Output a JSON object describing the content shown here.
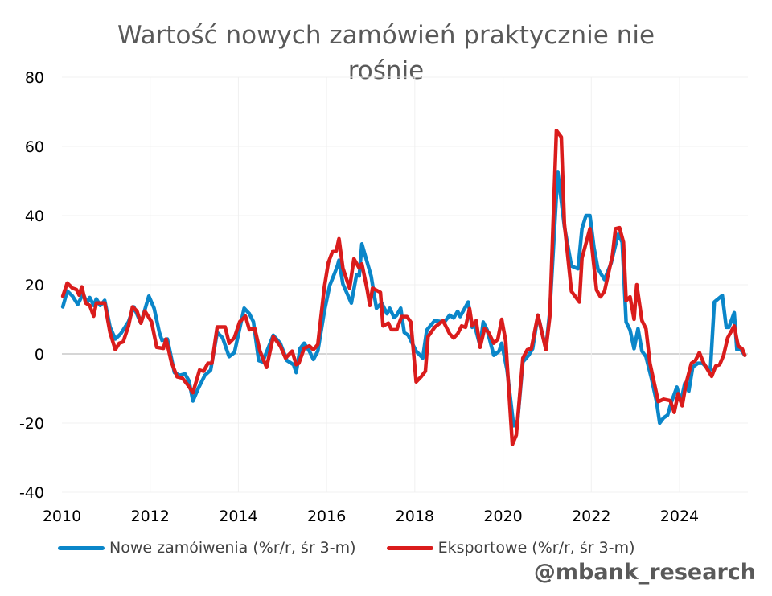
{
  "chart_data": {
    "type": "line",
    "title": "Wartość nowych zamówień praktycznie nie rośnie",
    "xlabel": "",
    "ylabel": "",
    "xlim": [
      2010,
      2025.55
    ],
    "ylim": [
      -40,
      80
    ],
    "x_ticks": [
      "2010",
      "2012",
      "2014",
      "2016",
      "2018",
      "2020",
      "2022",
      "2024"
    ],
    "y_ticks": [
      "80",
      "60",
      "40",
      "20",
      "0",
      "-20",
      "-40"
    ],
    "grid": true,
    "legend_position": "bottom",
    "series": [
      {
        "name": "Nowe zamóiwenia (%r/r, śr 3-m)",
        "color": "#0A86C9",
        "points": [
          [
            2010.02,
            13.6
          ],
          [
            2010.12,
            18.2
          ],
          [
            2010.24,
            16.7
          ],
          [
            2010.36,
            14.3
          ],
          [
            2010.48,
            17.4
          ],
          [
            2010.57,
            14.7
          ],
          [
            2010.63,
            16.3
          ],
          [
            2010.72,
            14
          ],
          [
            2010.78,
            15.9
          ],
          [
            2010.87,
            14
          ],
          [
            2010.97,
            15.5
          ],
          [
            2011.09,
            7.8
          ],
          [
            2011.21,
            4.3
          ],
          [
            2011.33,
            5.8
          ],
          [
            2011.51,
            9.3
          ],
          [
            2011.63,
            13.6
          ],
          [
            2011.79,
            8.9
          ],
          [
            2011.97,
            16.7
          ],
          [
            2012.09,
            13.2
          ],
          [
            2012.21,
            6.2
          ],
          [
            2012.27,
            3.9
          ],
          [
            2012.39,
            4.3
          ],
          [
            2012.55,
            -5.4
          ],
          [
            2012.67,
            -6.2
          ],
          [
            2012.79,
            -5.8
          ],
          [
            2012.88,
            -7.8
          ],
          [
            2012.97,
            -13.6
          ],
          [
            2013.09,
            -10
          ],
          [
            2013.24,
            -6.2
          ],
          [
            2013.37,
            -4.7
          ],
          [
            2013.52,
            6.2
          ],
          [
            2013.64,
            4.7
          ],
          [
            2013.79,
            -0.8
          ],
          [
            2013.91,
            0.4
          ],
          [
            2014.13,
            13.2
          ],
          [
            2014.25,
            11.6
          ],
          [
            2014.34,
            9.3
          ],
          [
            2014.46,
            -1.9
          ],
          [
            2014.55,
            -2.3
          ],
          [
            2014.79,
            5.4
          ],
          [
            2014.95,
            3.1
          ],
          [
            2015.1,
            -1.9
          ],
          [
            2015.25,
            -3.1
          ],
          [
            2015.31,
            -5.4
          ],
          [
            2015.4,
            1.6
          ],
          [
            2015.49,
            3.1
          ],
          [
            2015.61,
            0.8
          ],
          [
            2015.7,
            -1.6
          ],
          [
            2015.8,
            0.8
          ],
          [
            2015.95,
            12.4
          ],
          [
            2016.07,
            19.8
          ],
          [
            2016.19,
            23.6
          ],
          [
            2016.25,
            25.6
          ],
          [
            2016.28,
            27.1
          ],
          [
            2016.37,
            20.2
          ],
          [
            2016.56,
            14.7
          ],
          [
            2016.68,
            22.9
          ],
          [
            2016.74,
            22.5
          ],
          [
            2016.8,
            31.8
          ],
          [
            2017.01,
            22.5
          ],
          [
            2017.13,
            13.2
          ],
          [
            2017.25,
            14.7
          ],
          [
            2017.37,
            11.6
          ],
          [
            2017.43,
            13.2
          ],
          [
            2017.53,
            10.5
          ],
          [
            2017.59,
            11.2
          ],
          [
            2017.68,
            13.2
          ],
          [
            2017.76,
            6.2
          ],
          [
            2017.85,
            5.4
          ],
          [
            2018.03,
            0.8
          ],
          [
            2018.18,
            -1.2
          ],
          [
            2018.27,
            6.9
          ],
          [
            2018.45,
            9.6
          ],
          [
            2018.67,
            9.2
          ],
          [
            2018.79,
            11.2
          ],
          [
            2018.88,
            10.4
          ],
          [
            2018.97,
            12.3
          ],
          [
            2019.03,
            10.8
          ],
          [
            2019.21,
            15
          ],
          [
            2019.3,
            7.7
          ],
          [
            2019.36,
            8.1
          ],
          [
            2019.48,
            2.3
          ],
          [
            2019.55,
            9.2
          ],
          [
            2019.64,
            6.9
          ],
          [
            2019.79,
            -0.4
          ],
          [
            2019.91,
            0.8
          ],
          [
            2019.97,
            3.1
          ],
          [
            2020.09,
            -4.6
          ],
          [
            2020.24,
            -20.8
          ],
          [
            2020.33,
            -19.2
          ],
          [
            2020.45,
            -2.3
          ],
          [
            2020.58,
            -0.4
          ],
          [
            2020.67,
            1.5
          ],
          [
            2020.79,
            11.2
          ],
          [
            2020.97,
            1.5
          ],
          [
            2021.06,
            12.3
          ],
          [
            2021.24,
            52.7
          ],
          [
            2021.39,
            36.9
          ],
          [
            2021.55,
            25.4
          ],
          [
            2021.7,
            24.6
          ],
          [
            2021.79,
            36.2
          ],
          [
            2021.88,
            40
          ],
          [
            2021.97,
            40
          ],
          [
            2022.06,
            30.8
          ],
          [
            2022.15,
            24.6
          ],
          [
            2022.3,
            21.5
          ],
          [
            2022.45,
            26.2
          ],
          [
            2022.61,
            34.6
          ],
          [
            2022.7,
            32.3
          ],
          [
            2022.79,
            9.2
          ],
          [
            2022.88,
            6.9
          ],
          [
            2022.97,
            1.5
          ],
          [
            2023.06,
            7.3
          ],
          [
            2023.15,
            0.8
          ],
          [
            2023.24,
            -0.8
          ],
          [
            2023.36,
            -6.9
          ],
          [
            2023.48,
            -13.8
          ],
          [
            2023.55,
            -20
          ],
          [
            2023.64,
            -18.5
          ],
          [
            2023.73,
            -17.7
          ],
          [
            2023.82,
            -13.8
          ],
          [
            2023.94,
            -9.6
          ],
          [
            2024.03,
            -13.8
          ],
          [
            2024.12,
            -8.5
          ],
          [
            2024.21,
            -10.8
          ],
          [
            2024.3,
            -3.8
          ],
          [
            2024.42,
            -2.7
          ],
          [
            2024.52,
            -2.7
          ],
          [
            2024.61,
            -3.8
          ],
          [
            2024.7,
            -4.6
          ],
          [
            2024.79,
            15
          ],
          [
            2024.97,
            16.9
          ],
          [
            2025.06,
            7.7
          ],
          [
            2025.12,
            7.7
          ],
          [
            2025.24,
            11.9
          ],
          [
            2025.3,
            1.2
          ],
          [
            2025.39,
            1.2
          ],
          [
            2025.48,
            -0.4
          ]
        ]
      },
      {
        "name": "Eksportowe (%r/r, śr 3-m)",
        "color": "#DA1C1C",
        "points": [
          [
            2010.02,
            16.7
          ],
          [
            2010.12,
            20.5
          ],
          [
            2010.24,
            19
          ],
          [
            2010.33,
            18.6
          ],
          [
            2010.39,
            17
          ],
          [
            2010.45,
            19.4
          ],
          [
            2010.54,
            14.7
          ],
          [
            2010.63,
            14
          ],
          [
            2010.72,
            10.9
          ],
          [
            2010.78,
            14.7
          ],
          [
            2010.97,
            14.7
          ],
          [
            2011.09,
            6.2
          ],
          [
            2011.21,
            1.2
          ],
          [
            2011.3,
            3.1
          ],
          [
            2011.39,
            3.5
          ],
          [
            2011.51,
            8.1
          ],
          [
            2011.6,
            13.6
          ],
          [
            2011.7,
            12.4
          ],
          [
            2011.79,
            8.9
          ],
          [
            2011.88,
            12.4
          ],
          [
            2012.03,
            9.3
          ],
          [
            2012.15,
            1.9
          ],
          [
            2012.3,
            1.6
          ],
          [
            2012.36,
            4.3
          ],
          [
            2012.48,
            -2.3
          ],
          [
            2012.61,
            -6.6
          ],
          [
            2012.73,
            -7
          ],
          [
            2012.85,
            -8.9
          ],
          [
            2012.97,
            -11.2
          ],
          [
            2013.12,
            -4.7
          ],
          [
            2013.21,
            -5
          ],
          [
            2013.31,
            -2.7
          ],
          [
            2013.4,
            -2.7
          ],
          [
            2013.52,
            7.8
          ],
          [
            2013.7,
            7.8
          ],
          [
            2013.79,
            3.1
          ],
          [
            2013.91,
            4.7
          ],
          [
            2014.03,
            9.3
          ],
          [
            2014.16,
            10.9
          ],
          [
            2014.25,
            7
          ],
          [
            2014.37,
            7.4
          ],
          [
            2014.49,
            0.8
          ],
          [
            2014.64,
            -3.9
          ],
          [
            2014.79,
            5
          ],
          [
            2014.95,
            2.3
          ],
          [
            2015.07,
            -1.2
          ],
          [
            2015.22,
            0.8
          ],
          [
            2015.31,
            -3.1
          ],
          [
            2015.37,
            -2.7
          ],
          [
            2015.49,
            1.6
          ],
          [
            2015.61,
            2.3
          ],
          [
            2015.7,
            1.2
          ],
          [
            2015.8,
            2.7
          ],
          [
            2015.95,
            19.4
          ],
          [
            2016.04,
            26.4
          ],
          [
            2016.13,
            29.5
          ],
          [
            2016.22,
            29.8
          ],
          [
            2016.28,
            33.3
          ],
          [
            2016.37,
            24.8
          ],
          [
            2016.52,
            19
          ],
          [
            2016.62,
            27.5
          ],
          [
            2016.74,
            24.8
          ],
          [
            2016.8,
            26
          ],
          [
            2016.92,
            18.6
          ],
          [
            2016.98,
            14
          ],
          [
            2017.04,
            19
          ],
          [
            2017.22,
            17.8
          ],
          [
            2017.28,
            8.1
          ],
          [
            2017.4,
            8.9
          ],
          [
            2017.47,
            7
          ],
          [
            2017.59,
            7
          ],
          [
            2017.7,
            10.8
          ],
          [
            2017.82,
            10.8
          ],
          [
            2017.91,
            9.2
          ],
          [
            2018.03,
            -8.1
          ],
          [
            2018.15,
            -6.5
          ],
          [
            2018.24,
            -5
          ],
          [
            2018.3,
            5
          ],
          [
            2018.45,
            7.7
          ],
          [
            2018.64,
            9.6
          ],
          [
            2018.79,
            5.8
          ],
          [
            2018.88,
            4.6
          ],
          [
            2018.97,
            5.8
          ],
          [
            2019.06,
            8.1
          ],
          [
            2019.15,
            7.7
          ],
          [
            2019.24,
            13.1
          ],
          [
            2019.3,
            8.1
          ],
          [
            2019.39,
            9.6
          ],
          [
            2019.48,
            1.9
          ],
          [
            2019.58,
            7.3
          ],
          [
            2019.67,
            6.2
          ],
          [
            2019.79,
            3.1
          ],
          [
            2019.88,
            4.2
          ],
          [
            2019.97,
            10
          ],
          [
            2020.06,
            3.8
          ],
          [
            2020.21,
            -26.2
          ],
          [
            2020.3,
            -23.5
          ],
          [
            2020.45,
            -1.2
          ],
          [
            2020.55,
            1.2
          ],
          [
            2020.64,
            1.5
          ],
          [
            2020.79,
            11.2
          ],
          [
            2020.97,
            1.2
          ],
          [
            2021.06,
            10.8
          ],
          [
            2021.21,
            64.6
          ],
          [
            2021.32,
            62.7
          ],
          [
            2021.39,
            37.7
          ],
          [
            2021.55,
            18.1
          ],
          [
            2021.73,
            15
          ],
          [
            2021.79,
            27.7
          ],
          [
            2021.97,
            36.2
          ],
          [
            2022.12,
            18.5
          ],
          [
            2022.21,
            16.5
          ],
          [
            2022.3,
            18.1
          ],
          [
            2022.48,
            28.5
          ],
          [
            2022.55,
            36.2
          ],
          [
            2022.64,
            36.5
          ],
          [
            2022.73,
            32.3
          ],
          [
            2022.79,
            15.4
          ],
          [
            2022.88,
            16.5
          ],
          [
            2022.97,
            10
          ],
          [
            2023.03,
            20
          ],
          [
            2023.15,
            9.6
          ],
          [
            2023.24,
            7.3
          ],
          [
            2023.33,
            -2.7
          ],
          [
            2023.52,
            -13.8
          ],
          [
            2023.64,
            -13.1
          ],
          [
            2023.79,
            -13.5
          ],
          [
            2023.88,
            -16.9
          ],
          [
            2023.97,
            -11.5
          ],
          [
            2024.06,
            -15
          ],
          [
            2024.15,
            -8.5
          ],
          [
            2024.27,
            -2.7
          ],
          [
            2024.36,
            -1.9
          ],
          [
            2024.45,
            0.4
          ],
          [
            2024.55,
            -2.7
          ],
          [
            2024.73,
            -6.5
          ],
          [
            2024.82,
            -3.5
          ],
          [
            2024.91,
            -3.1
          ],
          [
            2025.0,
            -0.4
          ],
          [
            2025.09,
            4.6
          ],
          [
            2025.24,
            8.1
          ],
          [
            2025.33,
            2.3
          ],
          [
            2025.42,
            1.5
          ],
          [
            2025.48,
            -0.4
          ]
        ]
      }
    ]
  },
  "watermark": "@mbank_research"
}
